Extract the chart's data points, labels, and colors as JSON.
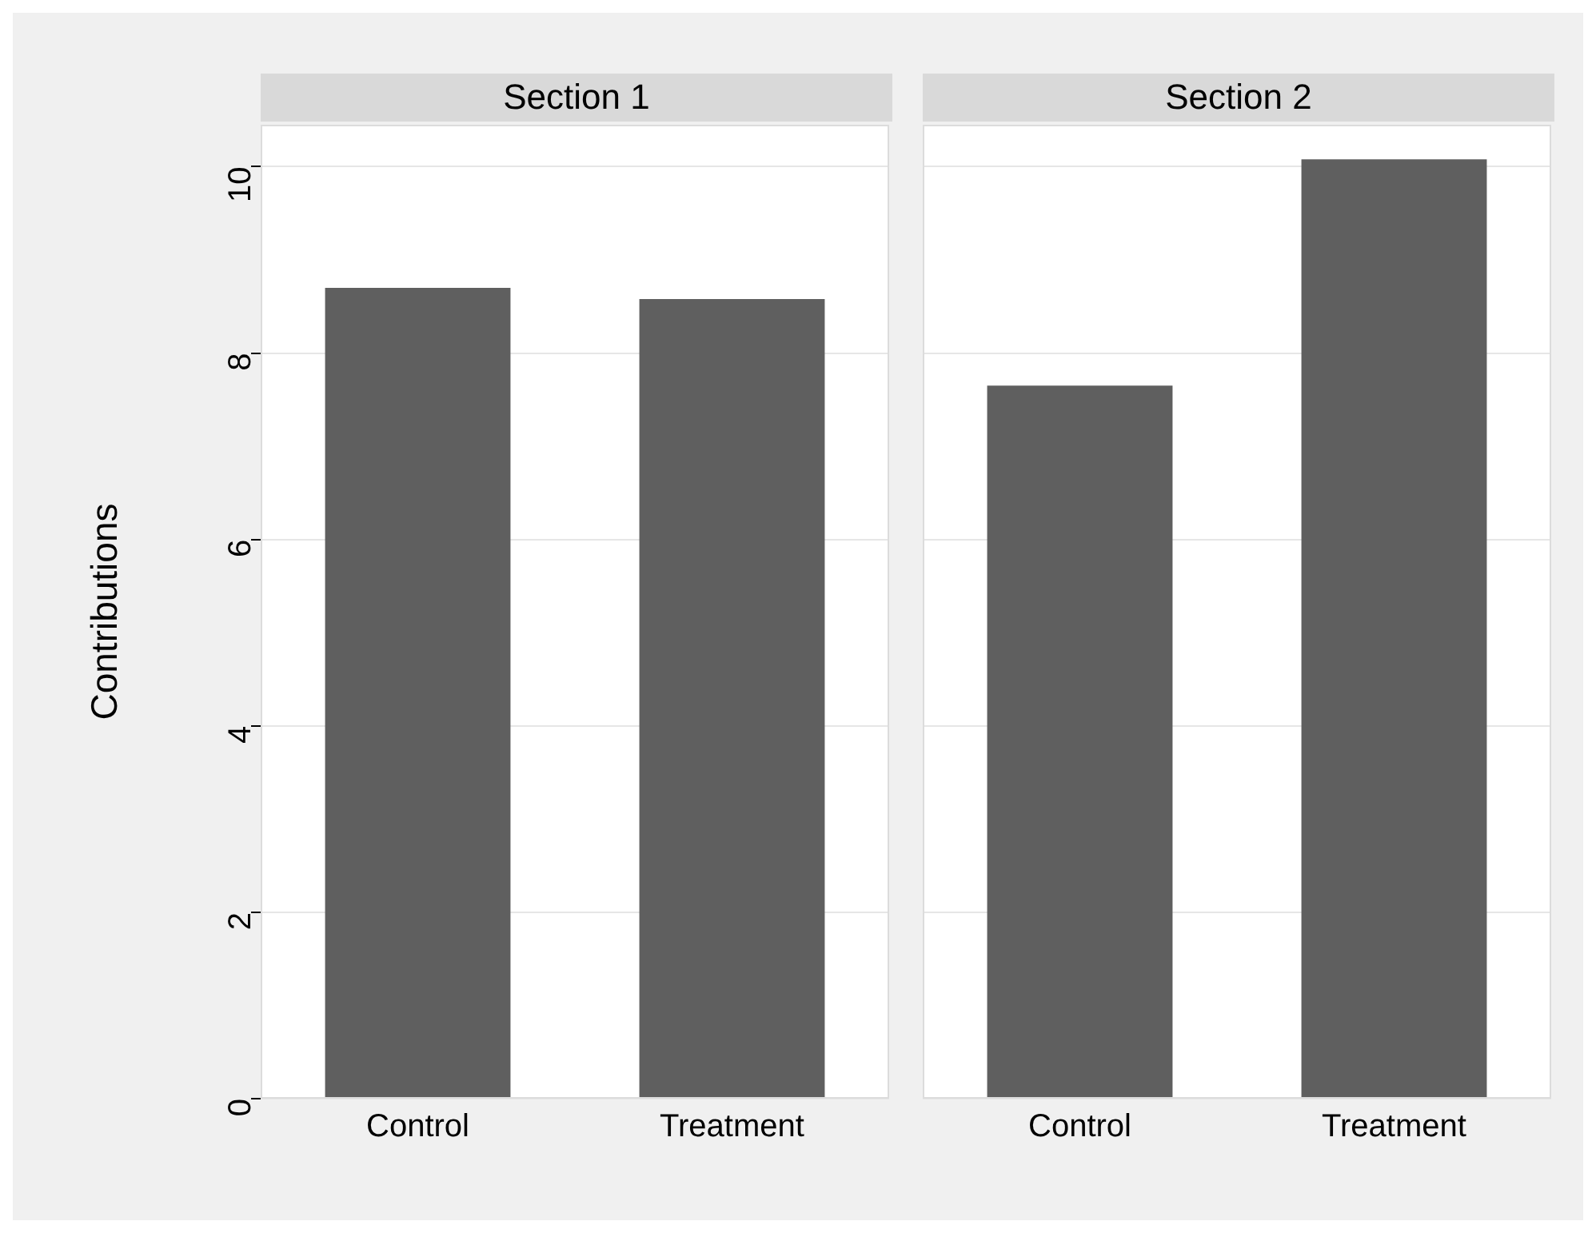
{
  "chart_data": [
    {
      "type": "bar",
      "title": "Section 1",
      "ylabel": "Contributions",
      "categories": [
        "Control",
        "Treatment"
      ],
      "values": [
        8.7,
        8.58
      ],
      "color": "#5f5f5f",
      "ylim": [
        0,
        10.45
      ],
      "yticks": [
        0,
        2,
        4,
        6,
        8,
        10
      ],
      "grid": "y"
    },
    {
      "type": "bar",
      "title": "Section 2",
      "categories": [
        "Control",
        "Treatment"
      ],
      "values": [
        7.65,
        10.08
      ],
      "color": "#5f5f5f",
      "ylim": [
        0,
        10.45
      ],
      "yticks": [
        0,
        2,
        4,
        6,
        8,
        10
      ],
      "grid": "y",
      "tick_labels": "x"
    }
  ]
}
